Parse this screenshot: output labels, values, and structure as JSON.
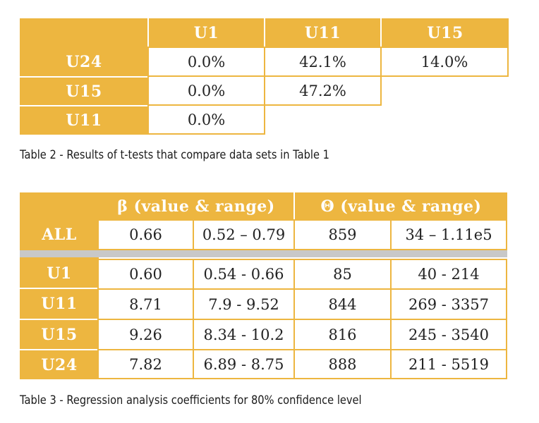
{
  "table2": {
    "col_headers": [
      "U1",
      "U11",
      "U15"
    ],
    "rows": [
      {
        "label": "U24",
        "values": [
          "0.0%",
          "42.1%",
          "14.0%"
        ]
      },
      {
        "label": "U15",
        "values": [
          "0.0%",
          "47.2%"
        ]
      },
      {
        "label": "U11",
        "values": [
          "0.0%"
        ]
      }
    ],
    "caption": "Table 2 -  Results of t-tests that compare data sets in Table 1"
  },
  "table3": {
    "group_headers": [
      "β (value & range)",
      "Θ (value & range)"
    ],
    "all_row": {
      "label": "ALL",
      "values": [
        "0.66",
        "0.52 – 0.79",
        "859",
        "34 – 1.11e5"
      ]
    },
    "rows": [
      {
        "label": "U1",
        "values": [
          "0.60",
          "0.54 - 0.66",
          "85",
          "40 - 214"
        ]
      },
      {
        "label": "U11",
        "values": [
          "8.71",
          "7.9 - 9.52",
          "844",
          "269 - 3357"
        ]
      },
      {
        "label": "U15",
        "values": [
          "9.26",
          "8.34 - 10.2",
          "816",
          "245 - 3540"
        ]
      },
      {
        "label": "U24",
        "values": [
          "7.82",
          "6.89 - 8.75",
          "888",
          "211 - 5519"
        ]
      }
    ],
    "caption": "Table 3 -  Regression analysis coefficients for 80% confidence level"
  },
  "colors": {
    "accent": "#EDB640",
    "separator": "#C8C8C8"
  }
}
